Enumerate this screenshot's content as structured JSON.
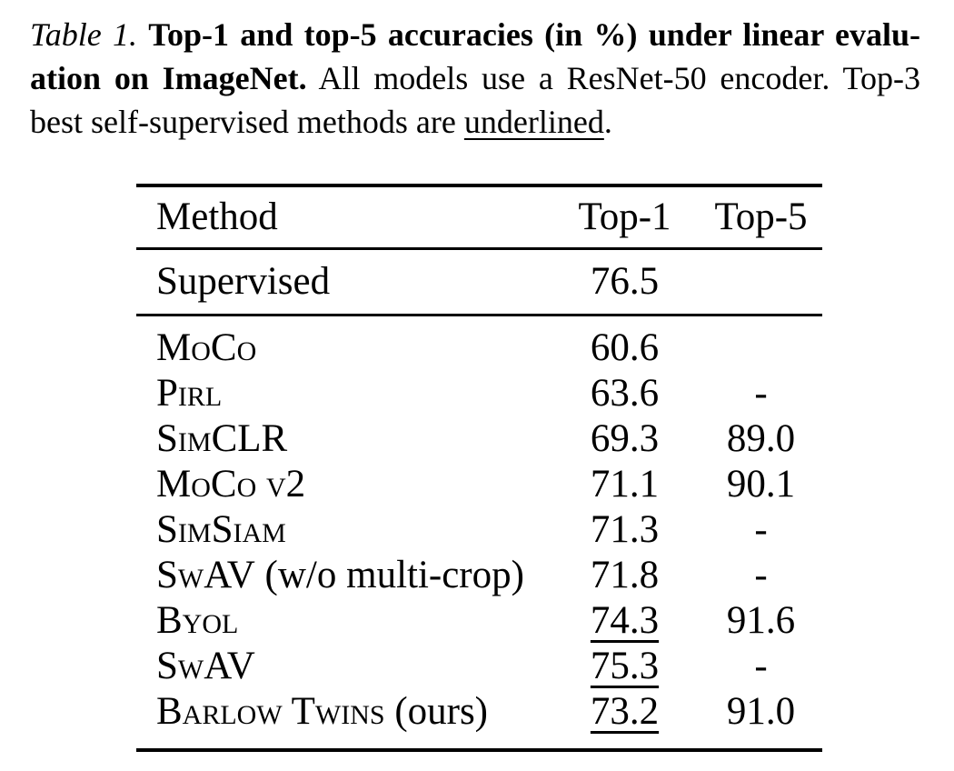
{
  "caption": {
    "label": "Table 1.",
    "bold_line1": "Top-1 and top-5 accuracies (in %) under linear evalu-",
    "bold_line2": "ation on ImageNet.",
    "regular_line2": "All models use a ResNet-50 encoder. Top-3",
    "regular_line3": "best self-supervised methods are",
    "underlined_word": "underlined",
    "line3_period": "."
  },
  "table": {
    "headers": [
      "Method",
      "Top-1",
      "Top-5"
    ],
    "supervised": {
      "method": "Supervised",
      "top1": "76.5",
      "top5": ""
    },
    "rows": [
      {
        "sc": "MoCo",
        "rest": "",
        "top1": "60.6",
        "top5": "",
        "underlined": false
      },
      {
        "sc": "Pirl",
        "rest": "",
        "top1": "63.6",
        "top5": "-",
        "underlined": false
      },
      {
        "sc": "SimCLR",
        "rest": "",
        "top1": "69.3",
        "top5": "89.0",
        "underlined": false
      },
      {
        "sc": "MoCo v2",
        "rest": "",
        "top1": "71.1",
        "top5": "90.1",
        "underlined": false
      },
      {
        "sc": "SimSiam",
        "rest": "",
        "top1": "71.3",
        "top5": "-",
        "underlined": false
      },
      {
        "sc": "SwAV",
        "rest": " (w/o multi-crop)",
        "top1": "71.8",
        "top5": "-",
        "underlined": false
      },
      {
        "sc": "Byol",
        "rest": "",
        "top1": "74.3",
        "top5": "91.6",
        "underlined": true
      },
      {
        "sc": "SwAV",
        "rest": "",
        "top1": "75.3",
        "top5": "-",
        "underlined": true
      },
      {
        "sc": "Barlow Twins",
        "rest": " (ours)",
        "top1": "73.2",
        "top5": "91.0",
        "underlined": true
      }
    ]
  },
  "colors": {
    "text": "#000000",
    "background": "#ffffff",
    "rule": "#000000"
  }
}
